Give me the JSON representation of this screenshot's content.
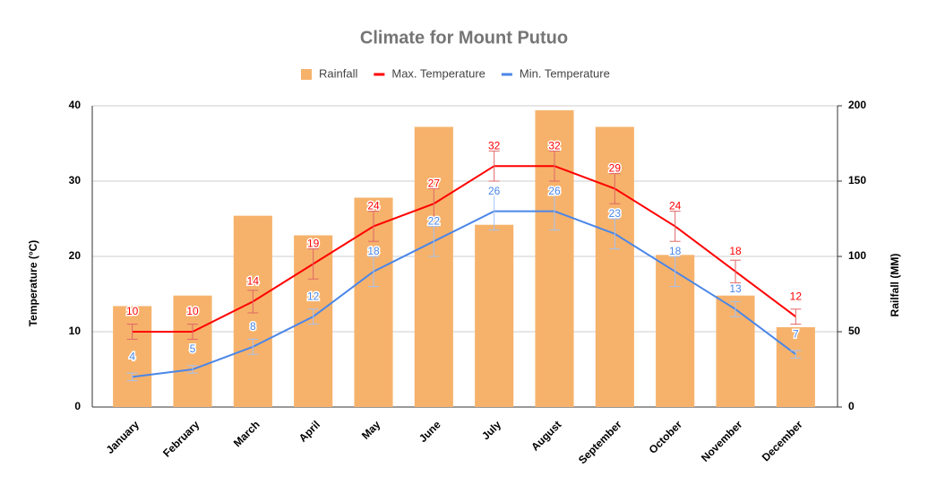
{
  "chart_data": {
    "type": "bar",
    "title": "Climate for Mount Putuo",
    "y_label": "Temperature (°C)",
    "y2_label": "Railfall (MM)",
    "categories": [
      "January",
      "February",
      "March",
      "April",
      "May",
      "June",
      "July",
      "August",
      "September",
      "October",
      "November",
      "December"
    ],
    "series": [
      {
        "name": "Rainfall",
        "type": "bar",
        "axis": "y2",
        "color": "#f6b26b",
        "values": [
          67,
          74,
          127,
          114,
          139,
          186,
          121,
          197,
          186,
          101,
          74,
          53
        ]
      },
      {
        "name": "Max. Temperature",
        "type": "line",
        "color": "#ff0000",
        "error_color": "#e06666",
        "values": [
          10,
          10,
          14,
          19,
          24,
          27,
          32,
          32,
          29,
          24,
          18,
          12
        ],
        "errors": [
          1,
          1,
          1.5,
          2,
          2,
          2,
          2,
          2,
          2,
          2,
          1.5,
          1
        ]
      },
      {
        "name": "Min. Temperature",
        "type": "line",
        "color": "#4a86e8",
        "error_color": "#a4c2f4",
        "values": [
          4,
          5,
          8,
          12,
          18,
          22,
          26,
          26,
          23,
          18,
          13,
          7
        ],
        "errors": [
          0.5,
          0.5,
          1,
          1,
          2,
          2,
          2.5,
          2.5,
          2,
          2,
          1,
          0.5
        ]
      }
    ],
    "ylim": [
      0,
      40
    ],
    "yticks": [
      0,
      10,
      20,
      30,
      40
    ],
    "y2lim": [
      0,
      200
    ],
    "y2ticks": [
      0,
      50,
      100,
      150,
      200
    ],
    "grid": true,
    "legend": "top"
  }
}
